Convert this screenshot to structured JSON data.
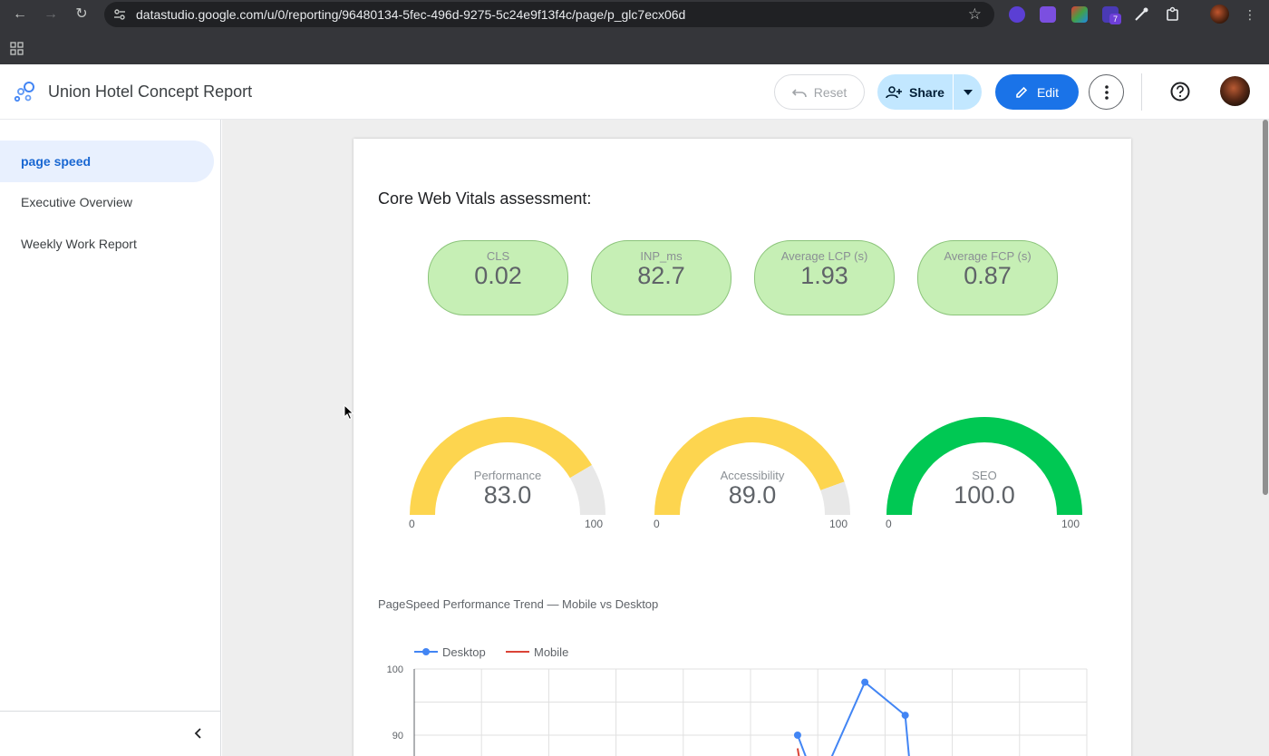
{
  "browser": {
    "url": "datastudio.google.com/u/0/reporting/96480134-5fec-496d-9275-5c24e9f13f4c/page/p_glc7ecx06d",
    "extension_badge": "7"
  },
  "header": {
    "title": "Union Hotel Concept Report",
    "reset_label": "Reset",
    "share_label": "Share",
    "edit_label": "Edit"
  },
  "sidebar": {
    "items": [
      {
        "label": "page speed",
        "active": true
      },
      {
        "label": "Executive Overview",
        "active": false
      },
      {
        "label": "Weekly Work Report",
        "active": false
      }
    ]
  },
  "report": {
    "section_title": "Core Web Vitals assessment:",
    "kpis": [
      {
        "label": "CLS",
        "value": "0.02"
      },
      {
        "label": "INP_ms",
        "value": "82.7"
      },
      {
        "label": "Average LCP (s)",
        "value": "1.93"
      },
      {
        "label": "Average FCP (s)",
        "value": "0.87"
      }
    ],
    "gauges": [
      {
        "label": "Performance",
        "value": "83.0",
        "fraction": 0.83,
        "min": "0",
        "max": "100",
        "color": "#fdd54f"
      },
      {
        "label": "Accessibility",
        "value": "89.0",
        "fraction": 0.89,
        "min": "0",
        "max": "100",
        "color": "#fdd54f"
      },
      {
        "label": "SEO",
        "value": "100.0",
        "fraction": 1.0,
        "min": "0",
        "max": "100",
        "color": "#00c853"
      }
    ]
  },
  "chart_data": {
    "type": "line",
    "title": "PageSpeed Performance Trend — Mobile vs Desktop",
    "legend": "top-left",
    "grid": true,
    "y_ticks": [
      "100",
      "90"
    ],
    "ylim_visible": [
      84,
      100
    ],
    "n_points": 11,
    "series": [
      {
        "name": "Desktop",
        "color": "#4285f4",
        "points": [
          [
            5.7,
            90
          ],
          [
            6.7,
            98
          ],
          [
            7.3,
            93
          ]
        ],
        "continues": [
          [
            6,
            82
          ],
          [
            7.4,
            82
          ]
        ]
      },
      {
        "name": "Mobile",
        "color": "#db4437",
        "points": [
          [
            5.7,
            88
          ]
        ],
        "continues": [
          [
            5.75,
            85
          ]
        ]
      }
    ]
  }
}
